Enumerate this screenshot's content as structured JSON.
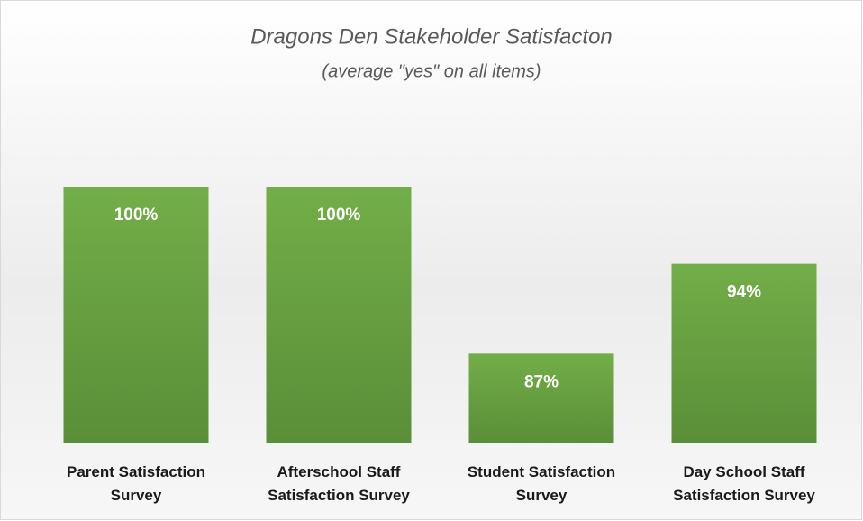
{
  "chart_data": {
    "type": "bar",
    "title": "Dragons Den Stakeholder Satisfacton",
    "subtitle": "(average \"yes\" on all items)",
    "categories": [
      "Parent Satisfaction Survey",
      "Afterschool Staff Satisfaction Survey",
      "Student Satisfaction Survey",
      "Day School Staff Satisfaction Survey"
    ],
    "values": [
      100,
      100,
      87,
      94
    ],
    "value_labels": [
      "100%",
      "100%",
      "87%",
      "94%"
    ],
    "color": "#70ad47",
    "ylim": [
      80,
      105
    ]
  }
}
